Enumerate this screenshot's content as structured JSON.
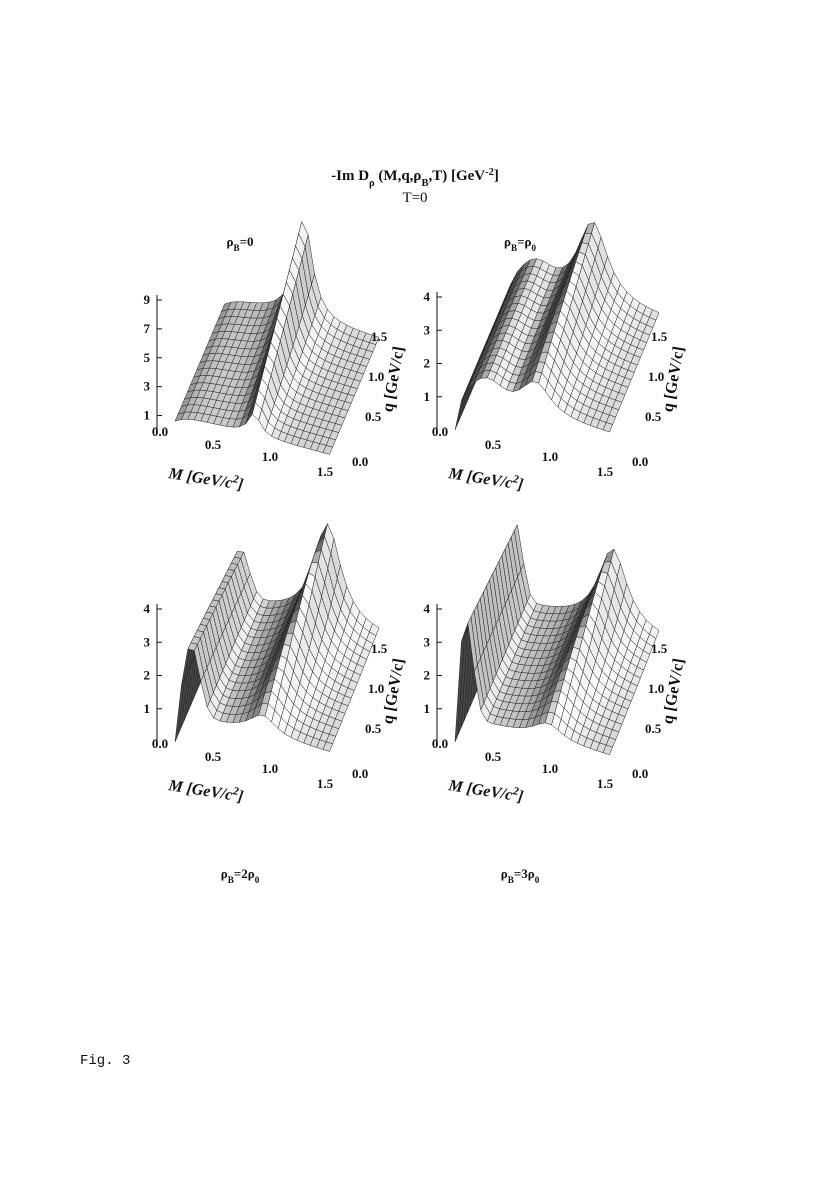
{
  "figure": {
    "title": {
      "text": "-Im D",
      "sub": "ρ",
      "text2": " (M,q,ρ",
      "sub2": "B",
      "text3": ",T)  [GeV",
      "sup": "-2",
      "text4": "]"
    },
    "subtitle": "T=0",
    "panels": [
      {
        "label": {
          "text": "ρ",
          "sub": "B",
          "text2": "=0"
        },
        "z_ticks": [
          1,
          3,
          5,
          7,
          9
        ],
        "m_ticks": [
          "0.0",
          "0.5",
          "1.0",
          "1.5"
        ],
        "q_ticks": [
          "0.0",
          "0.5",
          "1.0",
          "1.5"
        ],
        "m_label": {
          "text": "M [GeV/c",
          "sup": "2",
          "text2": "]"
        },
        "q_label": "q [GeV/c]"
      },
      {
        "label": {
          "text": "ρ",
          "sub": "B",
          "text2": "=ρ",
          "sub2": "0"
        },
        "z_ticks": [
          1,
          2,
          3,
          4
        ],
        "m_ticks": [
          "0.0",
          "0.5",
          "1.0",
          "1.5"
        ],
        "q_ticks": [
          "0.0",
          "0.5",
          "1.0",
          "1.5"
        ],
        "m_label": {
          "text": "M [GeV/c",
          "sup": "2",
          "text2": "]"
        },
        "q_label": "q [GeV/c]"
      },
      {
        "label": {
          "text": "ρ",
          "sub": "B",
          "text2": "=2ρ",
          "sub2": "0"
        },
        "z_ticks": [
          1,
          2,
          3,
          4
        ],
        "m_ticks": [
          "0.0",
          "0.5",
          "1.0",
          "1.5"
        ],
        "q_ticks": [
          "0.0",
          "0.5",
          "1.0",
          "1.5"
        ],
        "m_label": {
          "text": "M [GeV/c",
          "sup": "2",
          "text2": "]"
        },
        "q_label": "q [GeV/c]"
      },
      {
        "label": {
          "text": "ρ",
          "sub": "B",
          "text2": "=3ρ",
          "sub2": "0"
        },
        "z_ticks": [
          1,
          2,
          3,
          4
        ],
        "m_ticks": [
          "0.0",
          "0.5",
          "1.0",
          "1.5"
        ],
        "q_ticks": [
          "0.0",
          "0.5",
          "1.0",
          "1.5"
        ],
        "m_label": {
          "text": "M [GeV/c",
          "sup": "2",
          "text2": "]"
        },
        "q_label": "q [GeV/c]"
      }
    ],
    "caption": "Fig. 3"
  }
}
